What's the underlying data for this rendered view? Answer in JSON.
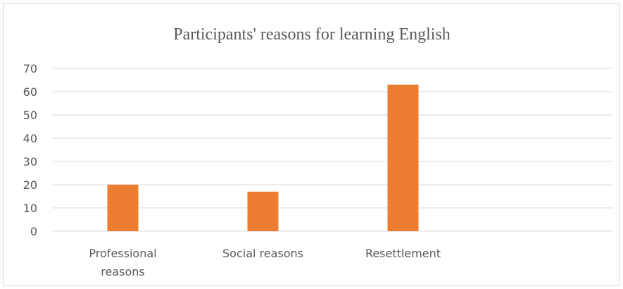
{
  "chart_data": {
    "type": "bar",
    "title": "Participants' reasons for learning English",
    "categories": [
      [
        "Professional",
        "reasons"
      ],
      [
        "Social reasons"
      ],
      [
        "Resettlement"
      ],
      [
        ""
      ]
    ],
    "values": [
      20,
      17,
      63,
      null
    ],
    "ylim": [
      0,
      70
    ],
    "yticks": [
      0,
      10,
      20,
      30,
      40,
      50,
      60,
      70
    ],
    "grid": true,
    "legend": "none",
    "colors": {
      "bar": "#ED7D31",
      "grid": "#d9d9d9",
      "text": "#595959"
    }
  }
}
